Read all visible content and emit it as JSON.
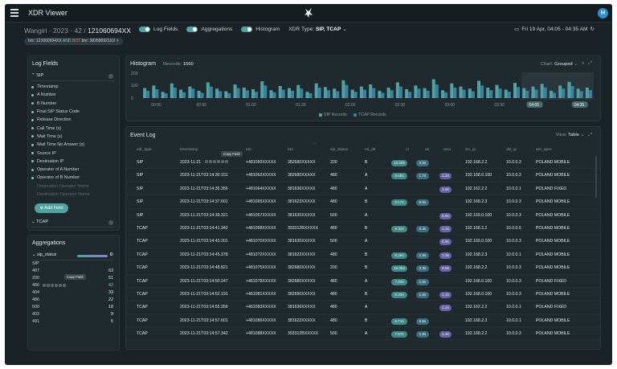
{
  "app": {
    "title": "XDR Viewer",
    "avatar": "H"
  },
  "context": {
    "prefix": "Wangiri · 2023 · 42 / ",
    "id": "121060694XX"
  },
  "toggles": [
    {
      "label": "Log Fields",
      "on": true
    },
    {
      "label": "Aggregations",
      "on": true
    },
    {
      "label": "Histogram",
      "on": true
    }
  ],
  "xdr_type": {
    "label": "XDR Type:",
    "value": "SIP, TCAP"
  },
  "date_range": "Fri 19 Apr, 04:05 - 04:35 AM",
  "filter_pill": {
    "a": "bnr: 121060694XX",
    "and": "AND",
    "not": "NOT",
    "b": "bnr: 382680921XX"
  },
  "log_fields": {
    "title": "Log Fields",
    "section_sip": "SIP",
    "section_tcap": "TCAP",
    "fields": [
      "Timestamp",
      "A Number",
      "B Number",
      "Final SIP Status Code",
      "Release Direction",
      "Call Time (s)",
      "Wait Time (s)",
      "Wait Time No Answer (s)",
      "Source IP",
      "Destination IP",
      "Operator of A Number",
      "Operator of B Number"
    ],
    "dim_fields": [
      "Origination Operator Name",
      "Destination Operator Name"
    ],
    "add_button": "Add Field"
  },
  "aggregations": {
    "title": "Aggregations",
    "selected": "sip_status",
    "group": "SIP",
    "tooltip": "Copy Field",
    "rows": [
      {
        "k": "487",
        "v": "63"
      },
      {
        "k": "200",
        "v": "51"
      },
      {
        "k": "480",
        "v": "42"
      },
      {
        "k": "404",
        "v": "33"
      },
      {
        "k": "486",
        "v": "22"
      },
      {
        "k": "500",
        "v": "18"
      },
      {
        "k": "403",
        "v": "9"
      },
      {
        "k": "491",
        "v": "5"
      }
    ]
  },
  "histogram": {
    "title": "Histogram",
    "records_label": "Records:",
    "records": "1560",
    "chart_label": "Chart:",
    "chart_value": "Grouped",
    "y_ticks": [
      "200",
      "100",
      "0"
    ],
    "x_ticks": [
      "00:00",
      "00:30",
      "01:00",
      "01:30",
      "02:00",
      "02:30",
      "03:00",
      "03:30",
      "04:00",
      "04:30",
      "04:05",
      "04:35"
    ],
    "legend": [
      "SIP Records",
      "TCAP Records"
    ],
    "colors": {
      "sip": "#4fa3a0",
      "tcap": "#3b7fa3"
    }
  },
  "chart_data": {
    "type": "bar",
    "ylim": [
      0,
      230
    ],
    "series": [
      {
        "name": "SIP Records",
        "values": [
          95,
          120,
          60,
          140,
          80,
          110,
          70,
          150,
          90,
          65,
          130,
          100,
          85,
          160,
          75,
          115,
          95,
          125,
          60,
          140,
          105,
          90,
          170,
          80,
          110,
          130,
          70,
          100,
          150,
          85,
          120,
          95,
          180,
          75,
          140,
          110,
          90,
          165,
          100,
          125,
          80,
          145,
          95,
          110,
          135,
          70,
          120,
          155,
          90,
          100
        ]
      },
      {
        "name": "TCAP Records",
        "values": [
          70,
          85,
          45,
          100,
          55,
          90,
          50,
          110,
          65,
          45,
          95,
          75,
          60,
          120,
          55,
          80,
          70,
          90,
          45,
          100,
          75,
          65,
          125,
          60,
          80,
          95,
          50,
          75,
          110,
          60,
          90,
          70,
          130,
          55,
          100,
          80,
          65,
          120,
          75,
          90,
          60,
          105,
          70,
          80,
          100,
          50,
          90,
          115,
          65,
          75
        ]
      }
    ]
  },
  "event_log": {
    "title": "Event Log",
    "view_label": "View:",
    "view_value": "Table",
    "tooltip": "Copy Field",
    "columns": [
      "xdr_type",
      "timestamp",
      "anr",
      "bnr",
      "sip_status",
      "rel_dir",
      "ct",
      "wt",
      "wna",
      "src_ip",
      "dst_ip",
      "anr_oper"
    ],
    "rows": [
      [
        "SIP",
        "2023-11-21",
        "+481060XXXXX",
        "382680XXXXX",
        "200",
        "B",
        "10.28s",
        "3.6s",
        "",
        "192.168.2.2",
        "10.0.0.3",
        "POLAND MOBILE"
      ],
      [
        "SIP",
        "2023-11-21T03:14:30.101",
        "+481062XXXXX",
        "382680XXXXX",
        "480",
        "A",
        "9.48s",
        "1.7s",
        "1.2s",
        "192.168.0.100",
        "10.0.0.3",
        "POLAND MOBILE"
      ],
      [
        "SIP",
        "2023-11-21T03:14:35.356",
        "+481064XXXXX",
        "381636XXXXX",
        "480",
        "A",
        "",
        "",
        "1.0s",
        "192.162.2.2",
        "10.0.0.1",
        "POLAND FIXED"
      ],
      [
        "SIP",
        "2023-11-21T03:14:37.601",
        "+481065XXXXX",
        "381623XXXXX",
        "480",
        "B",
        "9.17s",
        "6.8s",
        "",
        "192.168.2.3",
        "10.0.0.3",
        "POLAND MOBILE"
      ],
      [
        "SIP",
        "2023-11-21T03:14:39.321",
        "+481067XXXXX",
        "381630XXXXX",
        "500",
        "A",
        "",
        "",
        "0.8s",
        "192.169.0.100",
        "10.0.0.3",
        "POLAND MOBILE"
      ],
      [
        "TCAP",
        "2023-11-21T03:14:41.342",
        "+481068XXXXX",
        "393312BXXXXX",
        "480",
        "B",
        "9.31s",
        "2.3s",
        "1.1s",
        "192.168.2.2",
        "10.0.0.5",
        "POLAND MOBILE"
      ],
      [
        "TCAP",
        "2023-11-21T03:14:43.201",
        "+481070XXXXX",
        "381630XXXXX",
        "500",
        "A",
        "",
        "",
        "0.9s",
        "192.169.0.100",
        "10.0.0.3",
        "POLAND MOBILE"
      ],
      [
        "TCAP",
        "2023-11-21T03:14:45.378",
        "+481072XXXXX",
        "381622XXXXX",
        "480",
        "B",
        "8.28s",
        "1.9s",
        "1.3s",
        "192.168.2.3",
        "10.0.0.1",
        "POLAND MOBILE"
      ],
      [
        "TCAP",
        "2023-11-21T03:14:48.821",
        "+481075XXXXX",
        "382680XXXXX",
        "200",
        "B",
        "10.05s",
        "2.3s",
        "0.9s",
        "192.168.2.2",
        "10.0.0.3",
        "POLAND MOBILE"
      ],
      [
        "TCAP",
        "2023-11-21T03:14:50.247",
        "+481078XXXXX",
        "382680XXXXX",
        "480",
        "A",
        "7.23s",
        "1.6s",
        "",
        "192.168.0.100",
        "10.0.0.3",
        "POLAND FIXED"
      ],
      [
        "TCAP",
        "2023-11-21T03:14:52.191",
        "+481081XXXXX",
        "382690XXXXX",
        "480",
        "B",
        "9.32s",
        "1.5s",
        "1.1s",
        "192.168.0.100",
        "10.0.0.3",
        "POLAND MOBILE"
      ],
      [
        "TCAP",
        "2023-11-21T03:14:55.356",
        "+481083XXXXX",
        "381636XXXXX",
        "480",
        "A",
        "",
        "",
        "1.2s",
        "192.162.2.2",
        "10.0.0.1",
        "POLAND FIXED"
      ],
      [
        "TCAP",
        "2023-11-21T03:14:57.601",
        "+481086XXXXX",
        "381622XXXXX",
        "480",
        "B",
        "8.71s",
        "6.6s",
        "",
        "192.168.2.3",
        "10.0.0.1",
        "POLAND MOBILE"
      ],
      [
        "TCAP",
        "2023-11-21T03:14:57.342",
        "+481088XXXXX",
        "393312BXXXXX",
        "500",
        "A",
        "7.57s",
        "1.8s",
        "1.3s",
        "192.168.2.2",
        "10.0.0.3",
        "POLAND MOBILE"
      ]
    ]
  }
}
